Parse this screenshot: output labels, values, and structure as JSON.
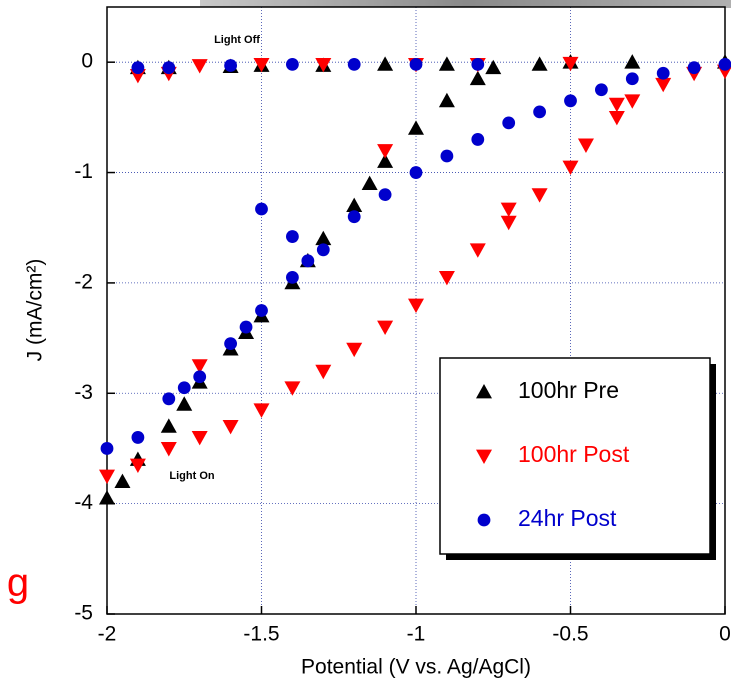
{
  "chart_data": {
    "type": "scatter",
    "xlabel": "Potential (V vs. Ag/AgCl)",
    "ylabel": "J (mA/cm²)",
    "xlim": [
      -2,
      0
    ],
    "ylim": [
      -5,
      0.5
    ],
    "xticks": [
      -2,
      -1.5,
      -1,
      -0.5,
      0
    ],
    "yticks": [
      0,
      -1,
      -2,
      -3,
      -4,
      -5
    ],
    "grid": true,
    "legend": "lower right",
    "annotations": [
      "Light Off",
      "Light On",
      "g"
    ],
    "series": [
      {
        "name": "100hr Pre",
        "color": "#000000",
        "marker": "triangle-up",
        "x": [
          -2,
          -1.95,
          -1.9,
          -1.8,
          -1.75,
          -1.7,
          -1.6,
          -1.55,
          -1.5,
          -1.4,
          -1.35,
          -1.3,
          -1.2,
          -1.15,
          -1.1,
          -1.0,
          -0.9,
          -0.8,
          -0.75,
          -0.6,
          -0.5,
          -0.3,
          0,
          -1.9,
          -1.8,
          -1.6,
          -1.5,
          -1.3,
          -1.1,
          -0.9
        ],
        "y": [
          -3.95,
          -3.8,
          -3.6,
          -3.3,
          -3.1,
          -2.9,
          -2.6,
          -2.45,
          -2.3,
          -2.0,
          -1.8,
          -1.6,
          -1.3,
          -1.1,
          -0.9,
          -0.6,
          -0.35,
          -0.15,
          -0.05,
          -0.02,
          0,
          0,
          0,
          -0.05,
          -0.05,
          -0.04,
          -0.03,
          -0.03,
          -0.02,
          -0.02
        ]
      },
      {
        "name": "100hr Post",
        "color": "#ff0000",
        "marker": "triangle-down",
        "x": [
          -2,
          -1.9,
          -1.8,
          -1.7,
          -1.6,
          -1.5,
          -1.4,
          -1.3,
          -1.2,
          -1.1,
          -1.0,
          -0.9,
          -0.8,
          -0.7,
          -0.6,
          -0.5,
          -0.45,
          -0.35,
          -0.3,
          -0.2,
          -0.1,
          0,
          -1.7,
          -1.1,
          -0.7,
          -0.35,
          -1.9,
          -1.8,
          -1.7,
          -1.5,
          -1.3,
          -1.0,
          -0.8,
          -0.5
        ],
        "y": [
          -3.75,
          -3.65,
          -3.5,
          -3.4,
          -3.3,
          -3.15,
          -2.95,
          -2.8,
          -2.6,
          -2.4,
          -2.2,
          -1.95,
          -1.7,
          -1.45,
          -1.2,
          -0.95,
          -0.75,
          -0.5,
          -0.35,
          -0.2,
          -0.1,
          -0.08,
          -2.75,
          -0.8,
          -1.33,
          -0.38,
          -0.12,
          -0.1,
          -0.03,
          -0.02,
          -0.02,
          -0.02,
          -0.02,
          -0.01
        ]
      },
      {
        "name": "24hr Post",
        "color": "#0000cc",
        "marker": "circle",
        "x": [
          -2,
          -1.9,
          -1.8,
          -1.75,
          -1.7,
          -1.6,
          -1.55,
          -1.5,
          -1.4,
          -1.35,
          -1.3,
          -1.2,
          -1.1,
          -1.0,
          -0.9,
          -0.8,
          -0.7,
          -0.6,
          -0.5,
          -0.4,
          -0.3,
          -0.2,
          -0.1,
          0,
          -1.5,
          -1.4,
          -1.9,
          -1.8,
          -1.6,
          -1.4,
          -1.2,
          -1.0,
          -0.8
        ],
        "y": [
          -3.5,
          -3.4,
          -3.05,
          -2.95,
          -2.85,
          -2.55,
          -2.4,
          -2.25,
          -1.95,
          -1.8,
          -1.7,
          -1.4,
          -1.2,
          -1.0,
          -0.85,
          -0.7,
          -0.55,
          -0.45,
          -0.35,
          -0.25,
          -0.15,
          -0.1,
          -0.05,
          -0.02,
          -1.33,
          -1.58,
          -0.05,
          -0.05,
          -0.03,
          -0.02,
          -0.02,
          -0.02,
          -0.02
        ]
      }
    ]
  }
}
